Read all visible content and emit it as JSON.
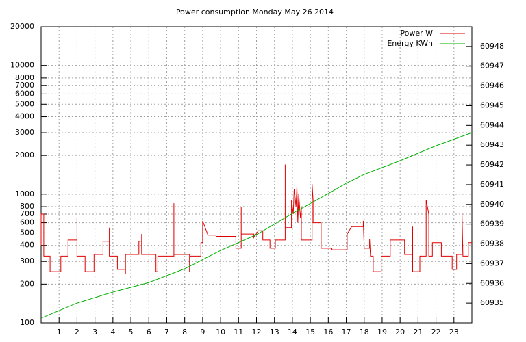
{
  "chart_data": {
    "type": "line",
    "title": "Power consumption Monday May 26 2014",
    "xlim": [
      0,
      24
    ],
    "xticks": [
      1,
      2,
      3,
      4,
      5,
      6,
      7,
      8,
      9,
      10,
      11,
      12,
      13,
      14,
      15,
      16,
      17,
      18,
      19,
      20,
      21,
      22,
      23
    ],
    "ylim": [
      100,
      20000
    ],
    "yscale": "log",
    "yticks": [
      100,
      200,
      300,
      400,
      500,
      600,
      700,
      800,
      1000,
      2000,
      3000,
      4000,
      5000,
      6000,
      7000,
      8000,
      10000,
      20000
    ],
    "y2lim": [
      60934,
      60949
    ],
    "y2ticks": [
      60935,
      60936,
      60937,
      60938,
      60939,
      60940,
      60941,
      60942,
      60943,
      60944,
      60945,
      60946,
      60947,
      60948
    ],
    "grid": true,
    "legend": "top-right",
    "series": [
      {
        "name": "Power W",
        "color": "#e00000",
        "x": [
          0,
          0,
          0.15,
          0.15,
          0.5,
          0.5,
          1.1,
          1.1,
          1.5,
          1.5,
          2.0,
          2.0,
          2.0,
          2.45,
          2.45,
          2.95,
          2.95,
          3.45,
          3.45,
          3.8,
          3.8,
          3.8,
          4.25,
          4.25,
          4.7,
          4.7,
          4.7,
          5.45,
          5.45,
          5.6,
          5.6,
          5.6,
          6.4,
          6.4,
          6.5,
          6.5,
          7.4,
          7.4,
          7.4,
          8.27,
          8.27,
          8.27,
          8.9,
          8.9,
          9.0,
          9.0,
          9.3,
          9.75,
          9.75,
          10.85,
          10.85,
          11.15,
          11.15,
          11.15,
          11.85,
          11.85,
          12.1,
          12.35,
          12.35,
          12.75,
          12.75,
          13.05,
          13.05,
          13.6,
          13.6,
          13.6,
          13.95,
          13.95,
          14.05,
          14.1,
          14.2,
          14.25,
          14.3,
          14.35,
          14.45,
          14.5,
          14.5,
          15.1,
          15.1,
          15.15,
          15.15,
          15.6,
          15.6,
          16.2,
          16.2,
          17.05,
          17.05,
          17.3,
          17.95,
          17.95,
          18.0,
          18.3,
          18.3,
          18.35,
          18.5,
          18.5,
          18.95,
          18.95,
          19.45,
          19.45,
          20.25,
          20.25,
          20.7,
          20.7,
          20.7,
          21.1,
          21.1,
          21.45,
          21.45,
          21.6,
          21.6,
          21.8,
          21.8,
          22.3,
          22.3,
          22.9,
          22.9,
          23.15,
          23.15,
          23.45,
          23.45,
          23.5,
          23.8,
          23.8,
          24
        ],
        "values": [
          400,
          700,
          700,
          330,
          330,
          250,
          250,
          330,
          330,
          440,
          440,
          650,
          330,
          330,
          250,
          250,
          340,
          340,
          430,
          430,
          550,
          330,
          330,
          260,
          260,
          240,
          340,
          340,
          430,
          430,
          490,
          340,
          340,
          250,
          250,
          330,
          330,
          850,
          340,
          340,
          250,
          330,
          330,
          420,
          420,
          620,
          480,
          480,
          470,
          470,
          380,
          380,
          800,
          490,
          490,
          460,
          520,
          520,
          440,
          440,
          380,
          380,
          440,
          440,
          1700,
          550,
          550,
          900,
          700,
          1100,
          800,
          1150,
          600,
          1000,
          650,
          800,
          440,
          440,
          1200,
          900,
          600,
          600,
          380,
          380,
          370,
          370,
          490,
          560,
          560,
          620,
          380,
          380,
          450,
          330,
          330,
          250,
          250,
          330,
          330,
          440,
          440,
          340,
          340,
          560,
          250,
          250,
          330,
          330,
          900,
          700,
          330,
          330,
          420,
          420,
          330,
          330,
          260,
          260,
          340,
          340,
          710,
          330,
          330,
          420,
          420
        ]
      },
      {
        "name": "Energy KWh",
        "color": "#00b000",
        "axis": "y2",
        "x": [
          0,
          2,
          4,
          6,
          8,
          10,
          12,
          14,
          16,
          17,
          18,
          20,
          22,
          24
        ],
        "values": [
          60934.24,
          60935.0,
          60935.56,
          60936.04,
          60936.74,
          60937.67,
          60938.47,
          60939.54,
          60940.55,
          60941.07,
          60941.52,
          60942.21,
          60942.97,
          60943.63
        ]
      }
    ]
  }
}
